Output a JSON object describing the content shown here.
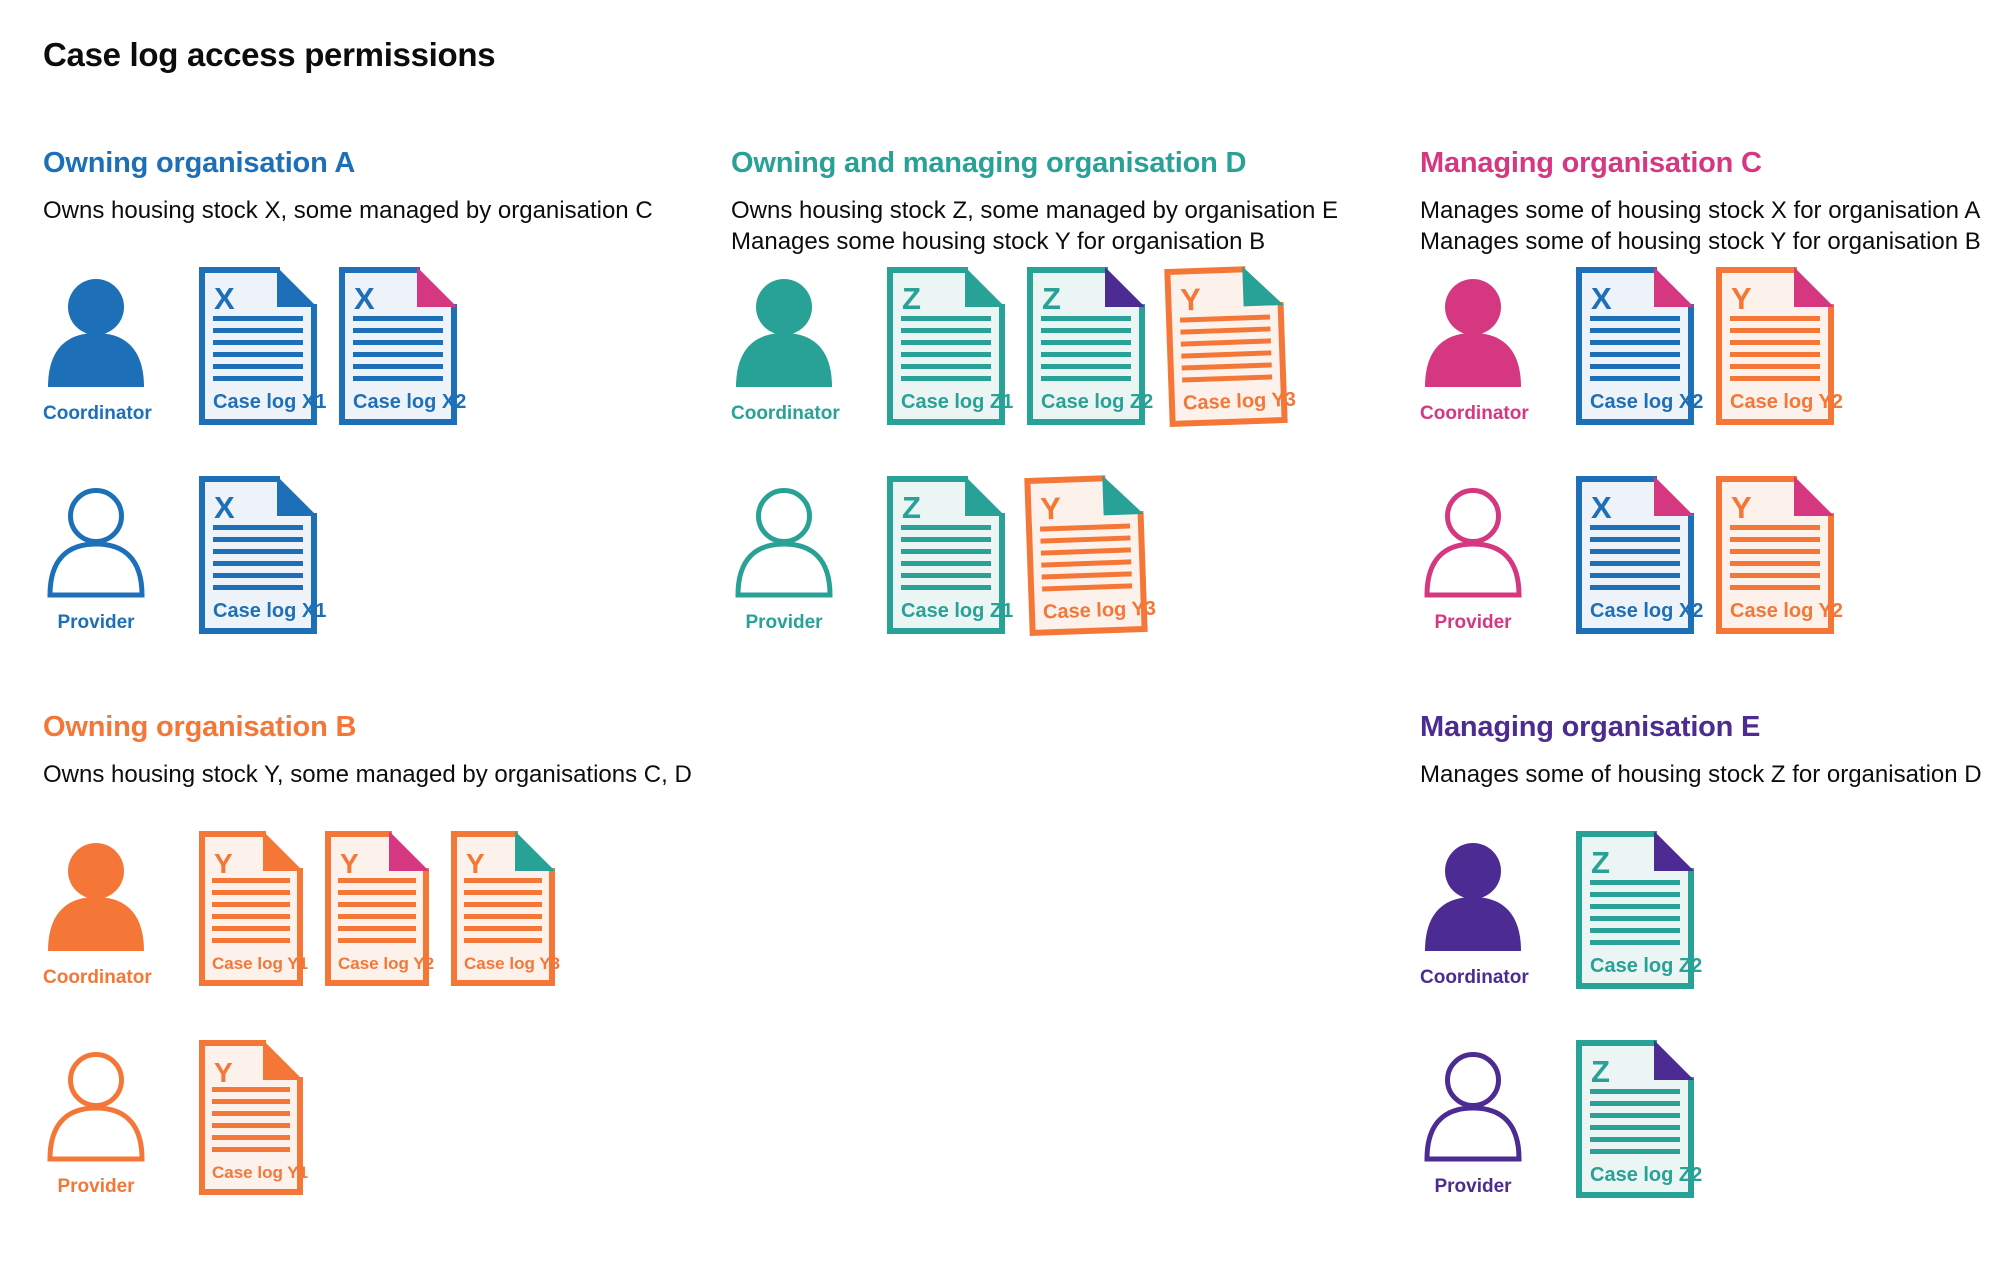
{
  "title": "Case log access permissions",
  "palette": {
    "blue": "#1d70b8",
    "teal": "#28a197",
    "orange": "#f47738",
    "pink": "#d53880",
    "purple": "#4c2c92",
    "text": "#0b0c0c",
    "blue_tint": "#eef3f9",
    "teal_tint": "#ebf5f3",
    "orange_tint": "#fdf2eb"
  },
  "sections": [
    {
      "id": "owning-organisation-a",
      "title": "Owning organisation A",
      "color_key": "blue",
      "subtitle_lines": [
        "Owns housing stock X, some managed by organisation C"
      ],
      "doc_size": "default",
      "rows": [
        {
          "persona": "Coordinator",
          "icon": "person-filled",
          "docs": [
            {
              "letter": "X",
              "label": "Case log X1",
              "color_key": "blue",
              "fold_key": "blue"
            },
            {
              "letter": "X",
              "label": "Case log X2",
              "color_key": "blue",
              "fold_key": "pink"
            }
          ]
        },
        {
          "persona": "Provider",
          "icon": "person-outline",
          "docs": [
            {
              "letter": "X",
              "label": "Case log X1",
              "color_key": "blue",
              "fold_key": "blue"
            }
          ]
        }
      ]
    },
    {
      "id": "owning-and-managing-organisation-d",
      "title": "Owning and managing organisation D",
      "color_key": "teal",
      "subtitle_lines": [
        "Owns housing stock Z, some managed by organisation E",
        "Manages some housing stock Y for organisation B"
      ],
      "doc_size": "default",
      "rows": [
        {
          "persona": "Coordinator",
          "icon": "person-filled",
          "docs": [
            {
              "letter": "Z",
              "label": "Case log Z1",
              "color_key": "teal",
              "fold_key": "teal"
            },
            {
              "letter": "Z",
              "label": "Case log Z2",
              "color_key": "teal",
              "fold_key": "purple"
            },
            {
              "letter": "Y",
              "label": "Case log Y3",
              "color_key": "orange",
              "fold_key": "teal",
              "tilt": true
            }
          ]
        },
        {
          "persona": "Provider",
          "icon": "person-outline",
          "docs": [
            {
              "letter": "Z",
              "label": "Case log Z1",
              "color_key": "teal",
              "fold_key": "teal"
            },
            {
              "letter": "Y",
              "label": "Case log Y3",
              "color_key": "orange",
              "fold_key": "teal",
              "tilt": true
            }
          ]
        }
      ]
    },
    {
      "id": "managing-organisation-c",
      "title": "Managing organisation C",
      "color_key": "pink",
      "subtitle_lines": [
        "Manages some of housing stock X for organisation A",
        "Manages some of housing stock Y for organisation B"
      ],
      "doc_size": "default",
      "rows": [
        {
          "persona": "Coordinator",
          "icon": "person-filled",
          "docs": [
            {
              "letter": "X",
              "label": "Case log X2",
              "color_key": "blue",
              "fold_key": "pink"
            },
            {
              "letter": "Y",
              "label": "Case log Y2",
              "color_key": "orange",
              "fold_key": "pink"
            }
          ]
        },
        {
          "persona": "Provider",
          "icon": "person-outline",
          "docs": [
            {
              "letter": "X",
              "label": "Case log X2",
              "color_key": "blue",
              "fold_key": "pink"
            },
            {
              "letter": "Y",
              "label": "Case log Y2",
              "color_key": "orange",
              "fold_key": "pink"
            }
          ]
        }
      ]
    },
    {
      "id": "owning-organisation-b",
      "title": "Owning organisation B",
      "color_key": "orange",
      "subtitle_lines": [
        "Owns housing stock Y, some managed by organisations C, D"
      ],
      "doc_size": "compact",
      "rows": [
        {
          "persona": "Coordinator",
          "icon": "person-filled",
          "docs": [
            {
              "letter": "Y",
              "label": "Case log Y1",
              "color_key": "orange",
              "fold_key": "orange"
            },
            {
              "letter": "Y",
              "label": "Case log Y2",
              "color_key": "orange",
              "fold_key": "pink"
            },
            {
              "letter": "Y",
              "label": "Case log Y3",
              "color_key": "orange",
              "fold_key": "teal"
            }
          ]
        },
        {
          "persona": "Provider",
          "icon": "person-outline",
          "docs": [
            {
              "letter": "Y",
              "label": "Case log Y1",
              "color_key": "orange",
              "fold_key": "orange"
            }
          ]
        }
      ]
    },
    {
      "id": "managing-organisation-e",
      "title": "Managing organisation E",
      "color_key": "purple",
      "subtitle_lines": [
        "Manages some of housing stock Z for organisation D"
      ],
      "doc_size": "default",
      "rows": [
        {
          "persona": "Coordinator",
          "icon": "person-filled",
          "docs": [
            {
              "letter": "Z",
              "label": "Case log Z2",
              "color_key": "teal",
              "fold_key": "purple"
            }
          ]
        },
        {
          "persona": "Provider",
          "icon": "person-outline",
          "docs": [
            {
              "letter": "Z",
              "label": "Case log Z2",
              "color_key": "teal",
              "fold_key": "purple"
            }
          ]
        }
      ]
    }
  ]
}
